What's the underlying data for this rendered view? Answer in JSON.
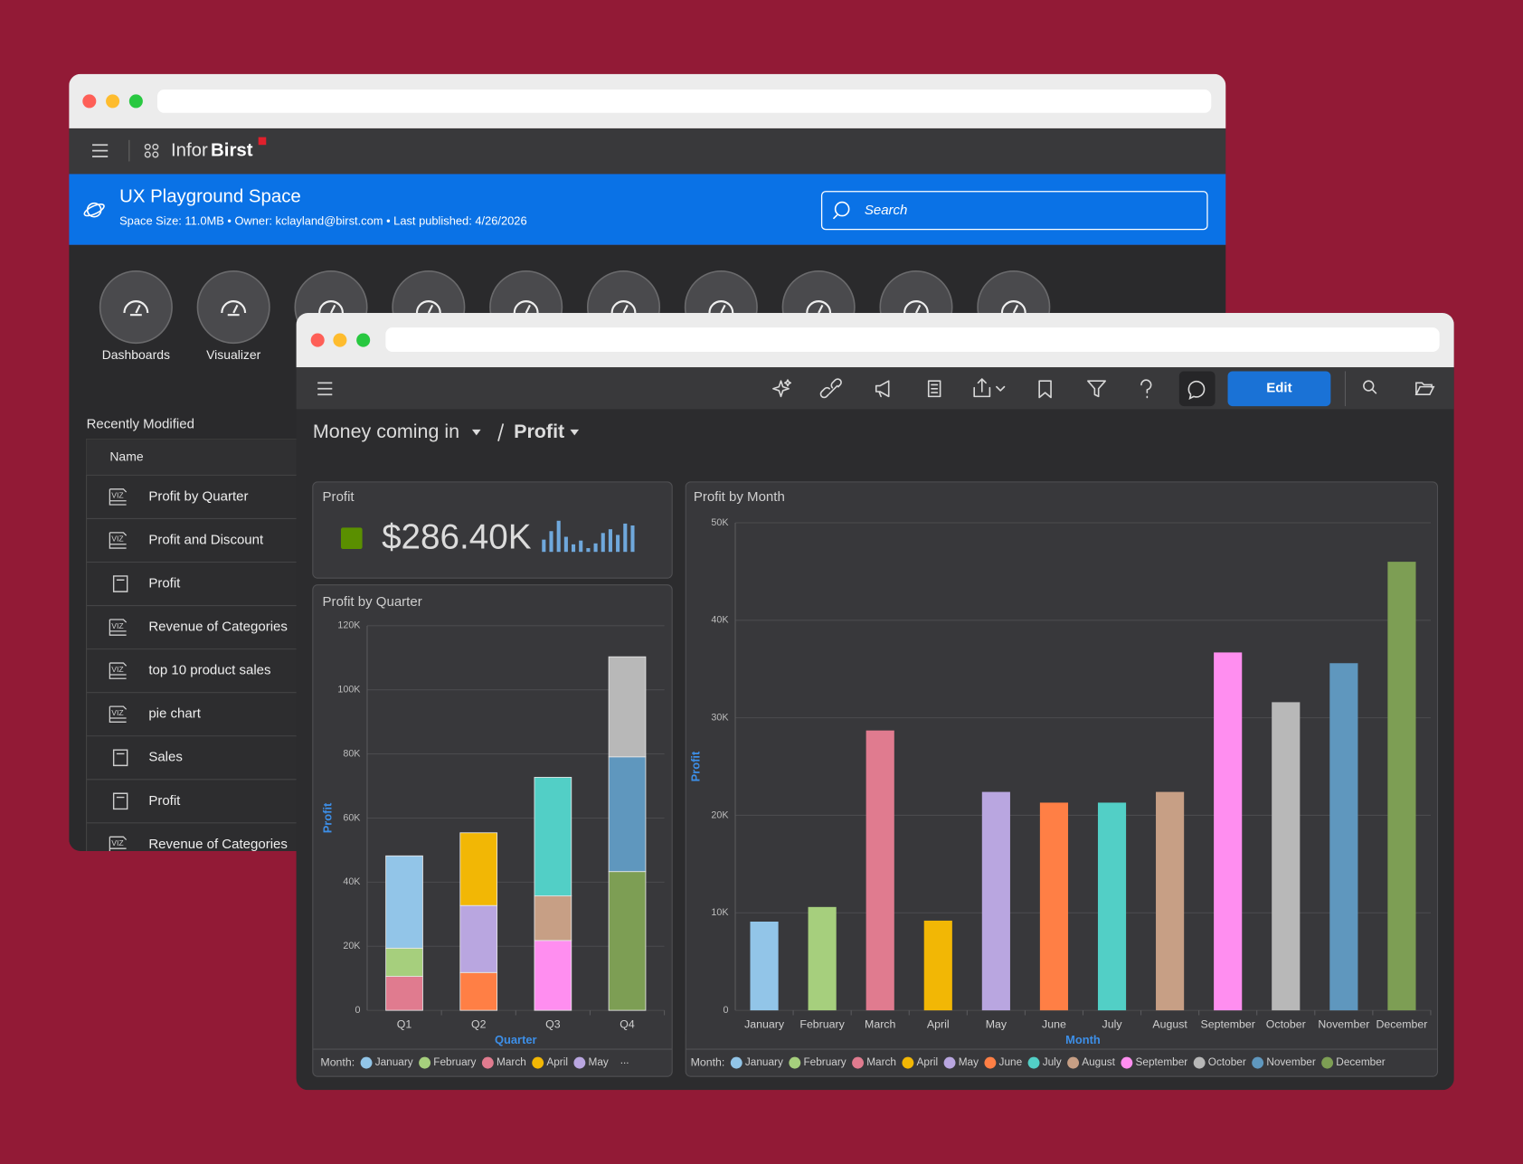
{
  "back_window": {
    "logo": {
      "brand": "Infor",
      "product": "Birst"
    },
    "space": {
      "title": "UX Playground Space",
      "details": "Space Size: 11.0MB • Owner: kclayland@birst.com • Last published: 4/26/2026"
    },
    "search_placeholder": "Search",
    "apps": [
      "Dashboards",
      "Visualizer"
    ],
    "recently_modified": {
      "title": "Recently Modified",
      "column": "Name",
      "rows": [
        {
          "badge": "VIZ",
          "name": "Profit by Quarter"
        },
        {
          "badge": "VIZ",
          "name": "Profit and Discount"
        },
        {
          "name": "Profit"
        },
        {
          "badge": "VIZ",
          "name": "Revenue of Categories"
        },
        {
          "badge": "VIZ",
          "name": "top 10 product sales"
        },
        {
          "badge": "VIZ",
          "name": "pie chart"
        },
        {
          "name": "Sales"
        },
        {
          "name": "Profit"
        },
        {
          "badge": "VIZ",
          "name": "Revenue of Categories"
        }
      ]
    }
  },
  "front_window": {
    "edit_button": "Edit",
    "breadcrumb": [
      "Money coming in",
      "Profit"
    ],
    "kpi": {
      "title": "Profit",
      "value": "$286.40K",
      "color": "#5a8f00"
    }
  },
  "chart_data": [
    {
      "type": "stacked_bar",
      "title": "Profit by Quarter",
      "x_label": "Quarter",
      "y_label": "Profit",
      "categories": [
        "Q1",
        "Q2",
        "Q3",
        "Q4"
      ],
      "series": [
        {
          "name": "January",
          "color": "#92c5e8",
          "values": [
            28800,
            null,
            null,
            null
          ]
        },
        {
          "name": "February",
          "color": "#a6cf7d",
          "values": [
            8800,
            null,
            null,
            null
          ]
        },
        {
          "name": "March",
          "color": "#e07b8f",
          "values": [
            10600,
            null,
            null,
            null
          ]
        },
        {
          "name": "April",
          "color": "#f2b705",
          "values": [
            null,
            22700,
            null,
            null
          ]
        },
        {
          "name": "May",
          "color": "#b9a6e0",
          "values": [
            null,
            20900,
            null,
            null
          ]
        },
        {
          "name": "June",
          "color": "#ff7f45",
          "values": [
            null,
            11800,
            null,
            null
          ]
        },
        {
          "name": "July",
          "color": "#52cfc6",
          "values": [
            null,
            null,
            37000,
            null
          ]
        },
        {
          "name": "August",
          "color": "#c79f85",
          "values": [
            null,
            null,
            13900,
            null
          ]
        },
        {
          "name": "September",
          "color": "#ff8ef0",
          "values": [
            null,
            null,
            21800,
            null
          ]
        },
        {
          "name": "October",
          "color": "#b8b8b8",
          "values": [
            null,
            null,
            null,
            31200
          ]
        },
        {
          "name": "November",
          "color": "#5f97be",
          "values": [
            null,
            null,
            null,
            35800
          ]
        },
        {
          "name": "December",
          "color": "#7d9e54",
          "values": [
            null,
            null,
            null,
            43300
          ]
        }
      ],
      "ylim": [
        0,
        120000
      ],
      "yticks": [
        0,
        {
          "value": 20000,
          "label": "20K"
        },
        {
          "value": 40000,
          "label": "40K"
        },
        {
          "value": 60000,
          "label": "60K"
        },
        {
          "value": 80000,
          "label": "80K"
        },
        {
          "value": 100000,
          "label": "100K"
        },
        {
          "value": 120000,
          "label": "120K"
        }
      ],
      "grid": true,
      "legend_title": "Month:",
      "legend_more": "..."
    },
    {
      "type": "bar",
      "title": "Profit by Month",
      "x_label": "Month",
      "y_label": "Profit",
      "categories": [
        "January",
        "February",
        "March",
        "April",
        "May",
        "June",
        "July",
        "August",
        "September",
        "October",
        "November",
        "December"
      ],
      "values": [
        9100,
        10600,
        28700,
        9200,
        22400,
        21300,
        21300,
        22400,
        36700,
        31600,
        35600,
        46000
      ],
      "colors": [
        "#92c5e8",
        "#a6cf7d",
        "#e07b8f",
        "#f2b705",
        "#b9a6e0",
        "#ff7f45",
        "#52cfc6",
        "#c79f85",
        "#ff8ef0",
        "#b8b8b8",
        "#5f97be",
        "#7d9e54"
      ],
      "ylim": [
        0,
        50000
      ],
      "yticks": [
        0,
        {
          "value": 10000,
          "label": "10K"
        },
        {
          "value": 20000,
          "label": "20K"
        },
        {
          "value": 30000,
          "label": "30K"
        },
        {
          "value": 40000,
          "label": "40K"
        },
        {
          "value": 50000,
          "label": "50K"
        }
      ],
      "grid": true,
      "legend_title": "Month:"
    },
    {
      "type": "sparkline",
      "color": "#6fa8dc",
      "values": [
        13,
        22,
        33,
        16,
        8,
        12,
        4,
        9,
        20,
        24,
        18,
        30,
        28
      ],
      "ylim": [
        0,
        35
      ]
    }
  ]
}
